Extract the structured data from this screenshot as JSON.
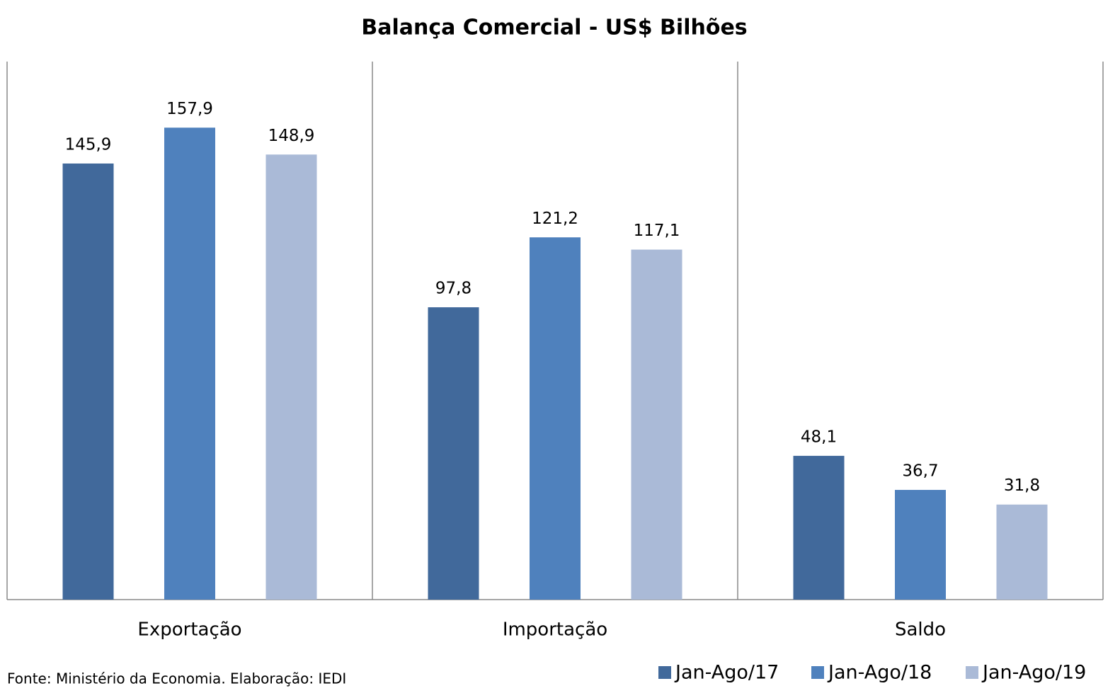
{
  "chart_data": {
    "type": "bar",
    "title": "Balança Comercial - US$ Bilhões",
    "categories": [
      "Exportação",
      "Importação",
      "Saldo"
    ],
    "series": [
      {
        "name": "Jan-Ago/17",
        "color": "#41699b",
        "values": [
          145.9,
          97.8,
          48.1
        ],
        "value_labels": [
          "145,9",
          "97,8",
          "48,1"
        ]
      },
      {
        "name": "Jan-Ago/18",
        "color": "#4f81bd",
        "values": [
          157.9,
          121.2,
          36.7
        ],
        "value_labels": [
          "157,9",
          "121,2",
          "36,7"
        ]
      },
      {
        "name": "Jan-Ago/19",
        "color": "#aabad7",
        "values": [
          148.9,
          117.1,
          31.8
        ],
        "value_labels": [
          "148,9",
          "117,1",
          "31,8"
        ]
      }
    ],
    "ylim": [
      0,
      180
    ],
    "legend": "bottom-right",
    "source": "Fonte: Ministério da Economia. Elaboração: IEDI"
  }
}
